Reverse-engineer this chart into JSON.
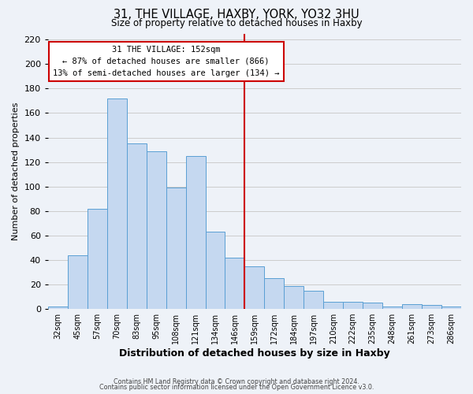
{
  "title1": "31, THE VILLAGE, HAXBY, YORK, YO32 3HU",
  "title2": "Size of property relative to detached houses in Haxby",
  "xlabel": "Distribution of detached houses by size in Haxby",
  "ylabel": "Number of detached properties",
  "bar_labels": [
    "32sqm",
    "45sqm",
    "57sqm",
    "70sqm",
    "83sqm",
    "95sqm",
    "108sqm",
    "121sqm",
    "134sqm",
    "146sqm",
    "159sqm",
    "172sqm",
    "184sqm",
    "197sqm",
    "210sqm",
    "222sqm",
    "235sqm",
    "248sqm",
    "261sqm",
    "273sqm",
    "286sqm"
  ],
  "bar_values": [
    2,
    44,
    82,
    172,
    135,
    129,
    99,
    125,
    63,
    42,
    35,
    25,
    19,
    15,
    6,
    6,
    5,
    2,
    4,
    3,
    2
  ],
  "bar_color": "#c5d8f0",
  "bar_edge_color": "#5a9fd4",
  "annotation_line1": "31 THE VILLAGE: 152sqm",
  "annotation_line2": "← 87% of detached houses are smaller (866)",
  "annotation_line3": "13% of semi-detached houses are larger (134) →",
  "vline_x_index": 9.5,
  "vline_color": "#cc0000",
  "annotation_box_color": "#cc0000",
  "ylim": [
    0,
    225
  ],
  "yticks": [
    0,
    20,
    40,
    60,
    80,
    100,
    120,
    140,
    160,
    180,
    200,
    220
  ],
  "grid_color": "#cccccc",
  "bg_color": "#eef2f8",
  "footer1": "Contains HM Land Registry data © Crown copyright and database right 2024.",
  "footer2": "Contains public sector information licensed under the Open Government Licence v3.0."
}
